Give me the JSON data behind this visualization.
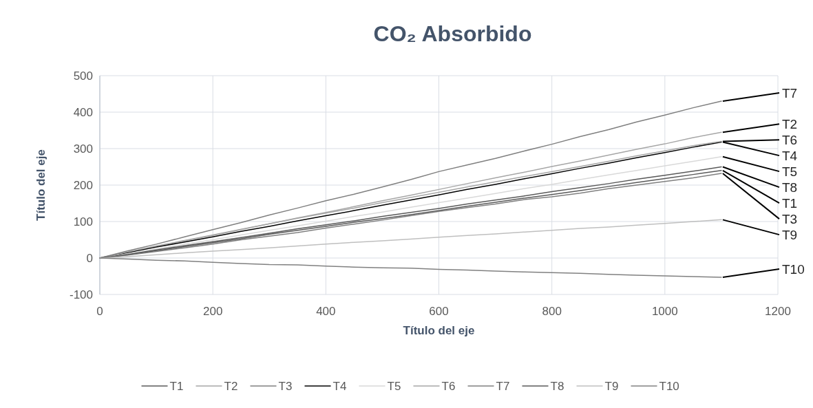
{
  "chart_data": {
    "type": "line",
    "title": "CO₂ Absorbido",
    "xlabel": "Título del eje",
    "ylabel": "Título del eje",
    "x": [
      0,
      50,
      100,
      150,
      200,
      250,
      300,
      350,
      400,
      450,
      500,
      550,
      600,
      650,
      700,
      750,
      800,
      850,
      900,
      950,
      1000,
      1050,
      1100
    ],
    "xlim": [
      0,
      1200
    ],
    "xticks": [
      0,
      200,
      400,
      600,
      800,
      1000,
      1200
    ],
    "ylim": [
      -100,
      500
    ],
    "yticks": [
      -100,
      0,
      100,
      200,
      300,
      400,
      500
    ],
    "grid": true,
    "legend": "bottom",
    "marker": "none",
    "line_style": "solid",
    "series": [
      {
        "name": "T1",
        "color": "#595959",
        "values": [
          0,
          9,
          20,
          31,
          42,
          53,
          65,
          76,
          87,
          98,
          108,
          119,
          130,
          142,
          153,
          164,
          174,
          185,
          196,
          207,
          218,
          229,
          240
        ]
      },
      {
        "name": "T2",
        "color": "#a6a6a6",
        "values": [
          0,
          15,
          32,
          47,
          62,
          78,
          94,
          110,
          125,
          141,
          157,
          172,
          188,
          204,
          220,
          235,
          251,
          266,
          282,
          298,
          313,
          330,
          345
        ]
      },
      {
        "name": "T3",
        "color": "#7f7f7f",
        "values": [
          0,
          8,
          18,
          28,
          38,
          50,
          60,
          70,
          82,
          93,
          104,
          116,
          128,
          138,
          148,
          160,
          168,
          178,
          190,
          200,
          210,
          220,
          232
        ]
      },
      {
        "name": "T4",
        "color": "#000000",
        "values": [
          0,
          15,
          30,
          44,
          58,
          73,
          87,
          102,
          116,
          130,
          145,
          159,
          173,
          188,
          202,
          217,
          231,
          246,
          260,
          275,
          289,
          304,
          318
        ]
      },
      {
        "name": "T5",
        "color": "#d9d9d9",
        "values": [
          0,
          12,
          25,
          38,
          50,
          63,
          76,
          88,
          101,
          114,
          126,
          139,
          152,
          164,
          177,
          190,
          202,
          215,
          228,
          240,
          253,
          265,
          278
        ]
      },
      {
        "name": "T6",
        "color": "#a6a6a6",
        "values": [
          0,
          17,
          33,
          48,
          63,
          79,
          94,
          109,
          123,
          137,
          152,
          166,
          180,
          195,
          209,
          223,
          237,
          251,
          265,
          280,
          294,
          308,
          320
        ]
      },
      {
        "name": "T7",
        "color": "#7f7f7f",
        "values": [
          0,
          20,
          38,
          58,
          78,
          97,
          118,
          137,
          157,
          175,
          195,
          215,
          237,
          255,
          273,
          293,
          312,
          333,
          352,
          373,
          392,
          412,
          430
        ]
      },
      {
        "name": "T8",
        "color": "#595959",
        "values": [
          0,
          10,
          22,
          34,
          45,
          56,
          68,
          80,
          91,
          102,
          114,
          125,
          136,
          148,
          159,
          170,
          182,
          193,
          204,
          216,
          227,
          238,
          250
        ]
      },
      {
        "name": "T9",
        "color": "#bfbfbf",
        "values": [
          0,
          4,
          9,
          14,
          19,
          23,
          28,
          33,
          38,
          43,
          47,
          52,
          57,
          62,
          66,
          71,
          76,
          81,
          85,
          90,
          95,
          100,
          105
        ]
      },
      {
        "name": "T10",
        "color": "#808080",
        "values": [
          0,
          -3,
          -6,
          -8,
          -12,
          -15,
          -18,
          -19,
          -22,
          -25,
          -27,
          -28,
          -31,
          -33,
          -36,
          -38,
          -40,
          -42,
          -45,
          -47,
          -49,
          -51,
          -53
        ]
      }
    ]
  }
}
